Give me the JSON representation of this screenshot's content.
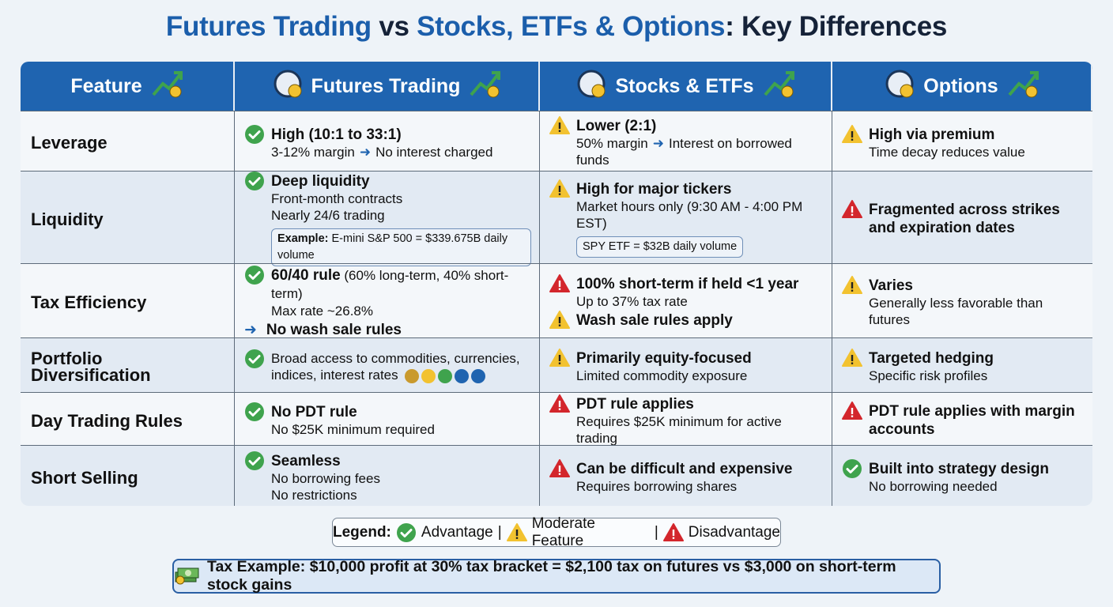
{
  "title": {
    "part1": "Futures Trading",
    "part2": " vs ",
    "part3": "Stocks, ETFs & Options",
    "part4": ": Key Differences"
  },
  "colors": {
    "header": "#1f64b0",
    "advantage": "#3fa34d",
    "moderate": "#f2c230",
    "disadvantage": "#d3262c"
  },
  "headers": [
    {
      "label": "Feature",
      "icon": "gear-trend-icon"
    },
    {
      "label": "Futures Trading",
      "icon": "clock-coin-icon",
      "icon2": "chart-coin-icon"
    },
    {
      "label": "Stocks & ETFs",
      "icon": "stock-certificate-icon",
      "icon2": "coin-stack-icon"
    },
    {
      "label": "Options",
      "icon": "chart-window-icon",
      "icon2": "buy-sell-icon"
    }
  ],
  "rows": [
    {
      "feature": "Leverage",
      "cells": [
        {
          "status": "advantage",
          "title": "High (10:1 to 33:1)",
          "lines": [
            [
              {
                "t": "3-12% margin"
              },
              {
                "arrow": true
              },
              {
                "t": "No interest charged"
              }
            ]
          ]
        },
        {
          "status": "moderate",
          "title": "Lower (2:1)",
          "lines": [
            [
              {
                "t": "50% margin"
              },
              {
                "arrow": true
              },
              {
                "t": "Interest on borrowed funds"
              }
            ]
          ]
        },
        {
          "status": "moderate",
          "title": "High via premium",
          "lines": [
            [
              {
                "t": "Time decay reduces value"
              }
            ]
          ]
        }
      ]
    },
    {
      "feature": "Liquidity",
      "cells": [
        {
          "status": "advantage",
          "title": "Deep liquidity",
          "lines": [
            [
              {
                "t": "Front-month contracts"
              }
            ],
            [
              {
                "t": "Nearly 24/6 trading"
              }
            ]
          ],
          "note": {
            "label": "Example:",
            "text": " E-mini S&P 500 = $339.675B daily volume"
          }
        },
        {
          "status": "moderate",
          "title": "High for major tickers",
          "lines": [
            [
              {
                "t": "Market hours only (9:30 AM - 4:00 PM EST)"
              }
            ]
          ],
          "note": {
            "label": "",
            "text": "SPY ETF = $32B daily volume"
          }
        },
        {
          "status": "disadvantage",
          "title": "Fragmented across strikes and expiration dates",
          "lines": []
        }
      ]
    },
    {
      "feature": "Tax Efficiency",
      "cells": [
        {
          "status": "advantage",
          "title": "60/40 rule",
          "title_suffix": " (60% long-term, 40% short-term)",
          "lines": [
            [
              {
                "t": "Max rate ~26.8%"
              }
            ]
          ],
          "extra": {
            "arrow": true,
            "text": "No wash sale rules"
          }
        },
        {
          "status": "disadvantage",
          "title": "100% short-term if held <1 year",
          "lines": [
            [
              {
                "t": "Up to 37% tax rate"
              }
            ]
          ],
          "extra": {
            "status": "moderate",
            "text": "Wash sale rules apply"
          }
        },
        {
          "status": "moderate",
          "title": "Varies",
          "lines": [
            [
              {
                "t": "Generally less favorable than futures"
              }
            ]
          ]
        }
      ]
    },
    {
      "feature": "Portfolio Diversification",
      "cells": [
        {
          "status": "advantage",
          "title": "",
          "lines": [
            [
              {
                "t": "Broad access to commodities, currencies,"
              }
            ],
            [
              {
                "t": "indices, interest rates"
              },
              {
                "mini": true
              }
            ]
          ]
        },
        {
          "status": "moderate",
          "title": "Primarily equity-focused",
          "lines": [
            [
              {
                "t": "Limited commodity exposure"
              }
            ]
          ]
        },
        {
          "status": "moderate",
          "title": "Targeted hedging",
          "lines": [
            [
              {
                "t": "Specific risk profiles"
              }
            ]
          ]
        }
      ]
    },
    {
      "feature": "Day Trading Rules",
      "cells": [
        {
          "status": "advantage",
          "title": "No PDT rule",
          "lines": [
            [
              {
                "t": "No $25K minimum required"
              }
            ]
          ]
        },
        {
          "status": "disadvantage",
          "title": "PDT rule applies",
          "lines": [
            [
              {
                "t": "Requires $25K minimum for active trading"
              }
            ]
          ]
        },
        {
          "status": "disadvantage",
          "title": "PDT rule applies with margin accounts",
          "lines": []
        }
      ]
    },
    {
      "feature": "Short Selling",
      "cells": [
        {
          "status": "advantage",
          "title": "Seamless",
          "lines": [
            [
              {
                "t": "No borrowing fees"
              }
            ],
            [
              {
                "t": "No restrictions"
              }
            ]
          ]
        },
        {
          "status": "disadvantage",
          "title": "Can be difficult and expensive",
          "lines": [
            [
              {
                "t": "Requires borrowing shares"
              }
            ]
          ]
        },
        {
          "status": "advantage",
          "title": "Built into strategy design",
          "lines": [
            [
              {
                "t": "No borrowing needed"
              }
            ]
          ]
        }
      ]
    }
  ],
  "legend": {
    "label": "Legend:",
    "advantage": "Advantage",
    "sep": "|",
    "moderate": "Moderate Feature",
    "disadvantage": "Disadvantage"
  },
  "tax_example": {
    "icon": "money-stack-icon",
    "text": "Tax Example: $10,000 profit at 30% tax bracket = $2,100 tax on futures vs $3,000 on short-term stock gains"
  }
}
